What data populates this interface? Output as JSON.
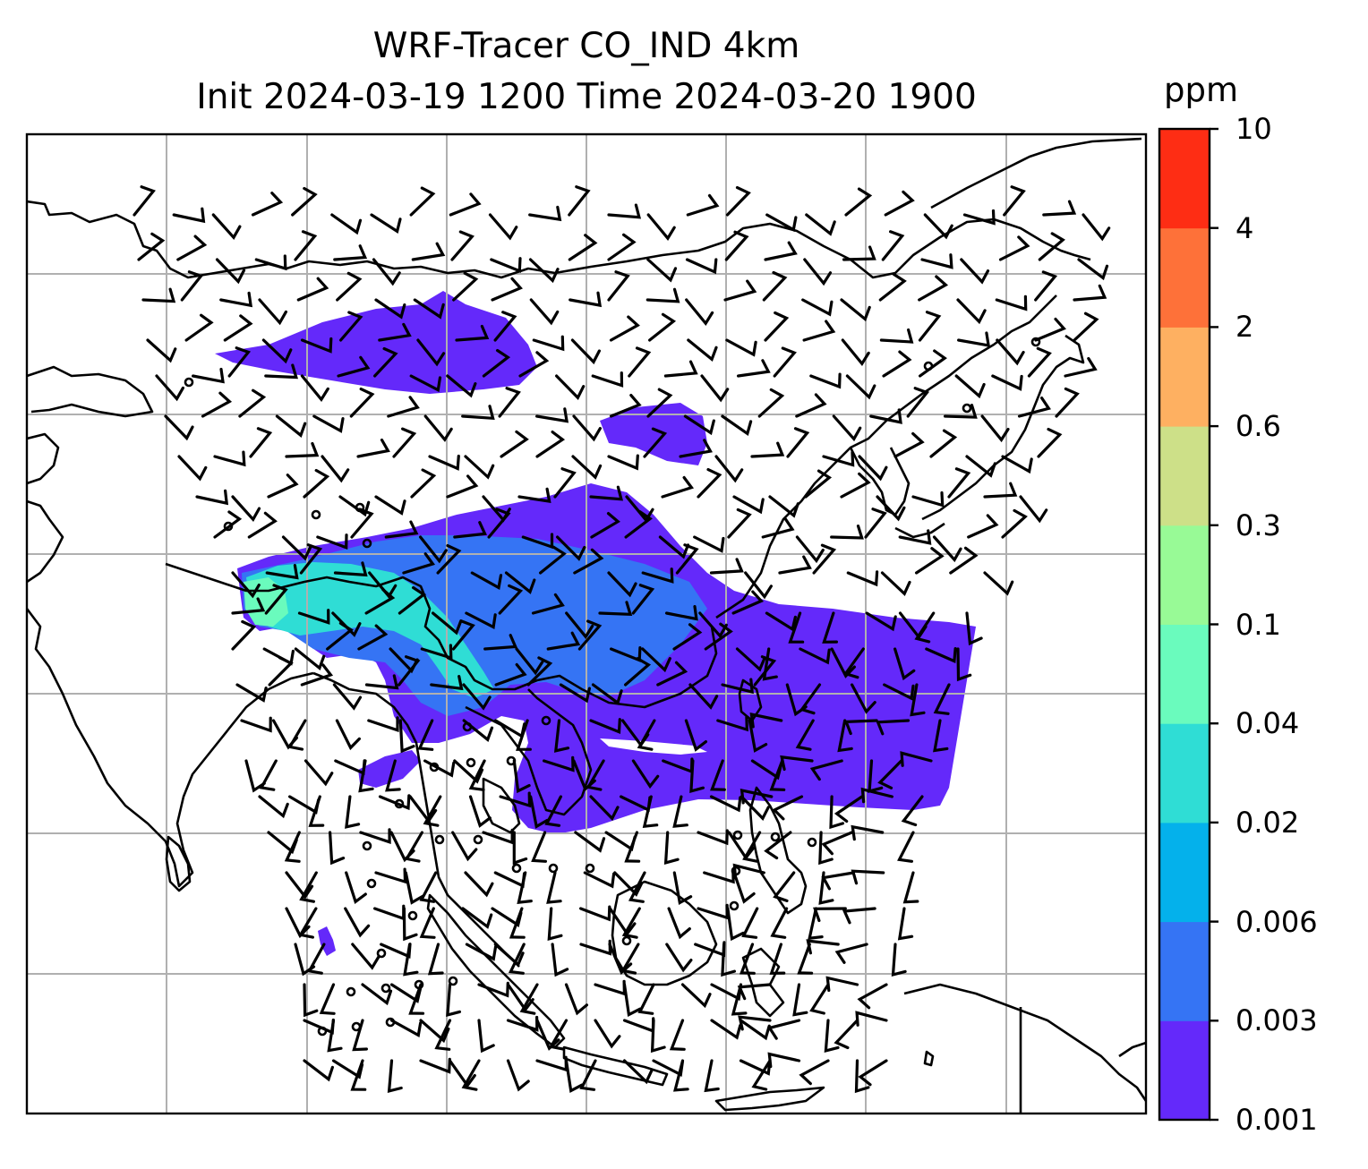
{
  "title": {
    "line1": "WRF-Tracer CO_IND 4km",
    "line2": "Init 2024-03-19 1200 Time 2024-03-20 1900"
  },
  "colorbar": {
    "unit": "ppm",
    "levels": [
      "0.001",
      "0.003",
      "0.006",
      "0.02",
      "0.04",
      "0.1",
      "0.3",
      "0.6",
      "2",
      "4",
      "10"
    ],
    "colors": [
      "#6429fa",
      "#3574f4",
      "#04b1eb",
      "#2fddd5",
      "#6afbbd",
      "#98fa96",
      "#cde088",
      "#feb061",
      "#fe7139",
      "#fe2d14"
    ]
  },
  "map": {
    "coastline_color": "#000000",
    "gridline_color": "#b0b0b0",
    "barb_color": "#000000",
    "gridlines": true
  }
}
